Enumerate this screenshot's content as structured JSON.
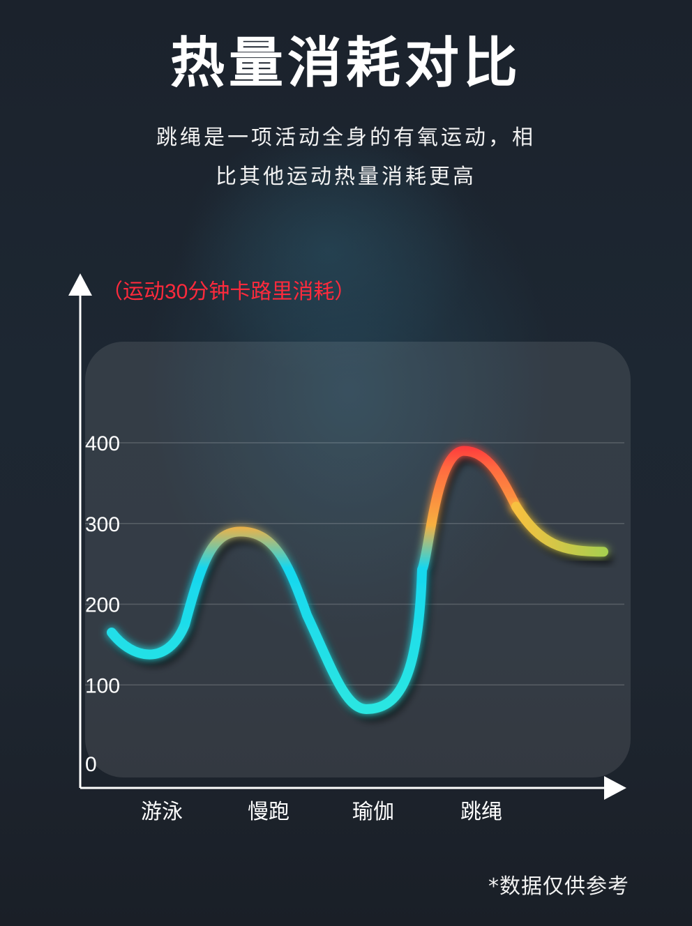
{
  "header": {
    "title": "热量消耗对比",
    "subtitle_line1": "跳绳是一项活动全身的有氧运动，相",
    "subtitle_line2": "比其他运动热量消耗更高"
  },
  "chart_data": {
    "type": "line",
    "ylabel": "（运动30分钟卡路里消耗）",
    "categories": [
      "游泳",
      "慢跑",
      "瑜伽",
      "跳绳"
    ],
    "y_ticks": [
      0,
      100,
      200,
      300,
      400
    ],
    "ylim": [
      0,
      400
    ],
    "grid": true,
    "values": [
      140,
      290,
      70,
      390
    ]
  },
  "footer": {
    "note": "*数据仅供参考"
  },
  "colors": {
    "curve_low": "#17d7ef",
    "curve_mid": "#f7b040",
    "curve_high": "#ff2a3c",
    "curve_end": "#a6cf50",
    "ylabel_color": "#ff2a3c"
  }
}
